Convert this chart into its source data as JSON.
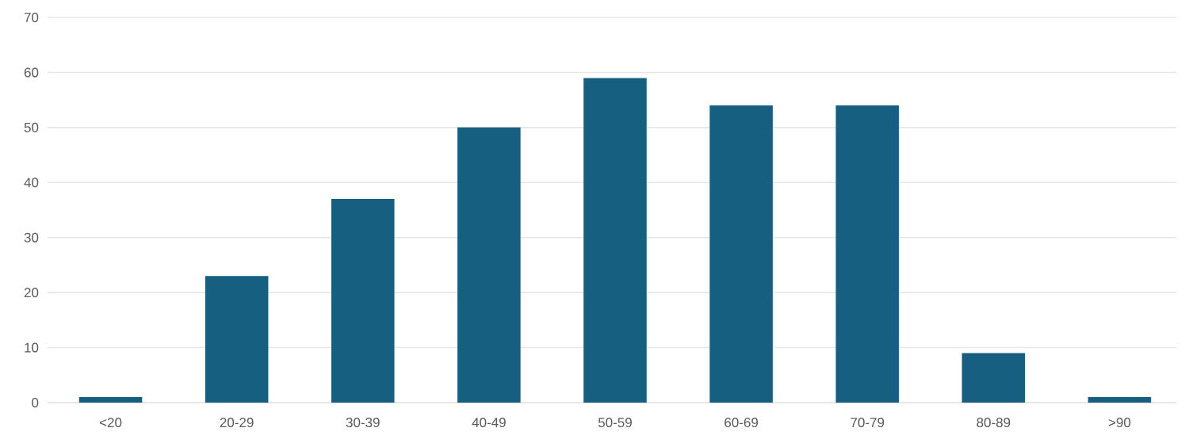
{
  "chart_data": {
    "type": "bar",
    "categories": [
      "<20",
      "20-29",
      "30-39",
      "40-49",
      "50-59",
      "60-69",
      "70-79",
      "80-89",
      ">90"
    ],
    "values": [
      1,
      23,
      37,
      50,
      59,
      54,
      54,
      9,
      1
    ],
    "color": "#175f80",
    "ylim": [
      0,
      70
    ],
    "yticks": [
      0,
      10,
      20,
      30,
      40,
      50,
      60,
      70
    ],
    "grid": "y"
  }
}
